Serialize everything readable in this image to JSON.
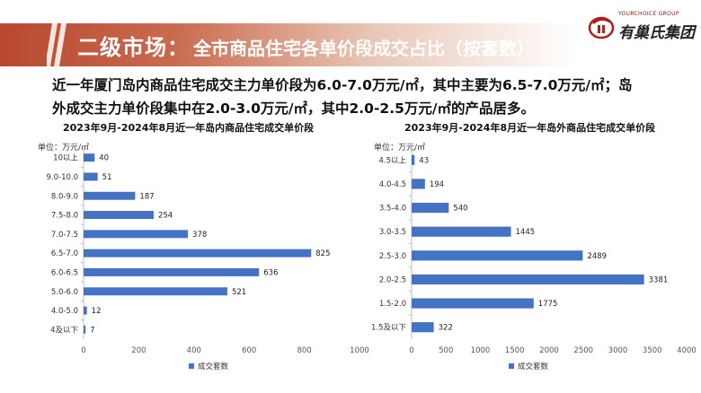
{
  "header": {
    "title_main": "二级市场：",
    "title_sub": "全市商品住宅各单价段成交占比（按套数）"
  },
  "logo": {
    "en": "YOURCHOICE GROUP",
    "cn": "有巢氏集团"
  },
  "colors": {
    "accent": "#b8482f",
    "bar": "#4472c4"
  },
  "description": {
    "line1": "近一年厦门岛内商品住宅成交主力单价段为6.0-7.0万元/㎡，其中主要为6.5-7.0万元/㎡；岛",
    "line2": "外成交主力单价段集中在2.0-3.0万元/㎡，其中2.0-2.5万元/㎡的产品居多。"
  },
  "chart_data": [
    {
      "type": "bar",
      "orientation": "horizontal",
      "title": "2023年9月-2024年8月近一年岛内商品住宅成交单价段",
      "unit": "单位：万元/㎡",
      "categories": [
        "10以上",
        "9.0-10.0",
        "8.0-9.0",
        "7.5-8.0",
        "7.0-7.5",
        "6.5-7.0",
        "6.0-6.5",
        "5.0-6.0",
        "4.0-5.0",
        "4及以下"
      ],
      "series": [
        {
          "name": "成交套数",
          "values": [
            40,
            51,
            187,
            254,
            378,
            825,
            636,
            521,
            12,
            7
          ]
        }
      ],
      "xlim": [
        0,
        1000
      ],
      "xticks": [
        0,
        200,
        400,
        600,
        800,
        1000
      ],
      "grid": false,
      "legend": "bottom"
    },
    {
      "type": "bar",
      "orientation": "horizontal",
      "title": "2023年9月-2024年8月近一年岛外商品住宅成交单价段",
      "unit": "单位：万元/㎡",
      "categories": [
        "4.5以上",
        "4.0-4.5",
        "3.5-4.0",
        "3.0-3.5",
        "2.5-3.0",
        "2.0-2.5",
        "1.5-2.0",
        "1.5及以下"
      ],
      "series": [
        {
          "name": "成交套数",
          "values": [
            43,
            194,
            540,
            1445,
            2489,
            3381,
            1775,
            322
          ]
        }
      ],
      "xlim": [
        0,
        4000
      ],
      "xticks": [
        0,
        500,
        1000,
        1500,
        2000,
        2500,
        3000,
        3500,
        4000
      ],
      "grid": false,
      "legend": "bottom"
    }
  ]
}
